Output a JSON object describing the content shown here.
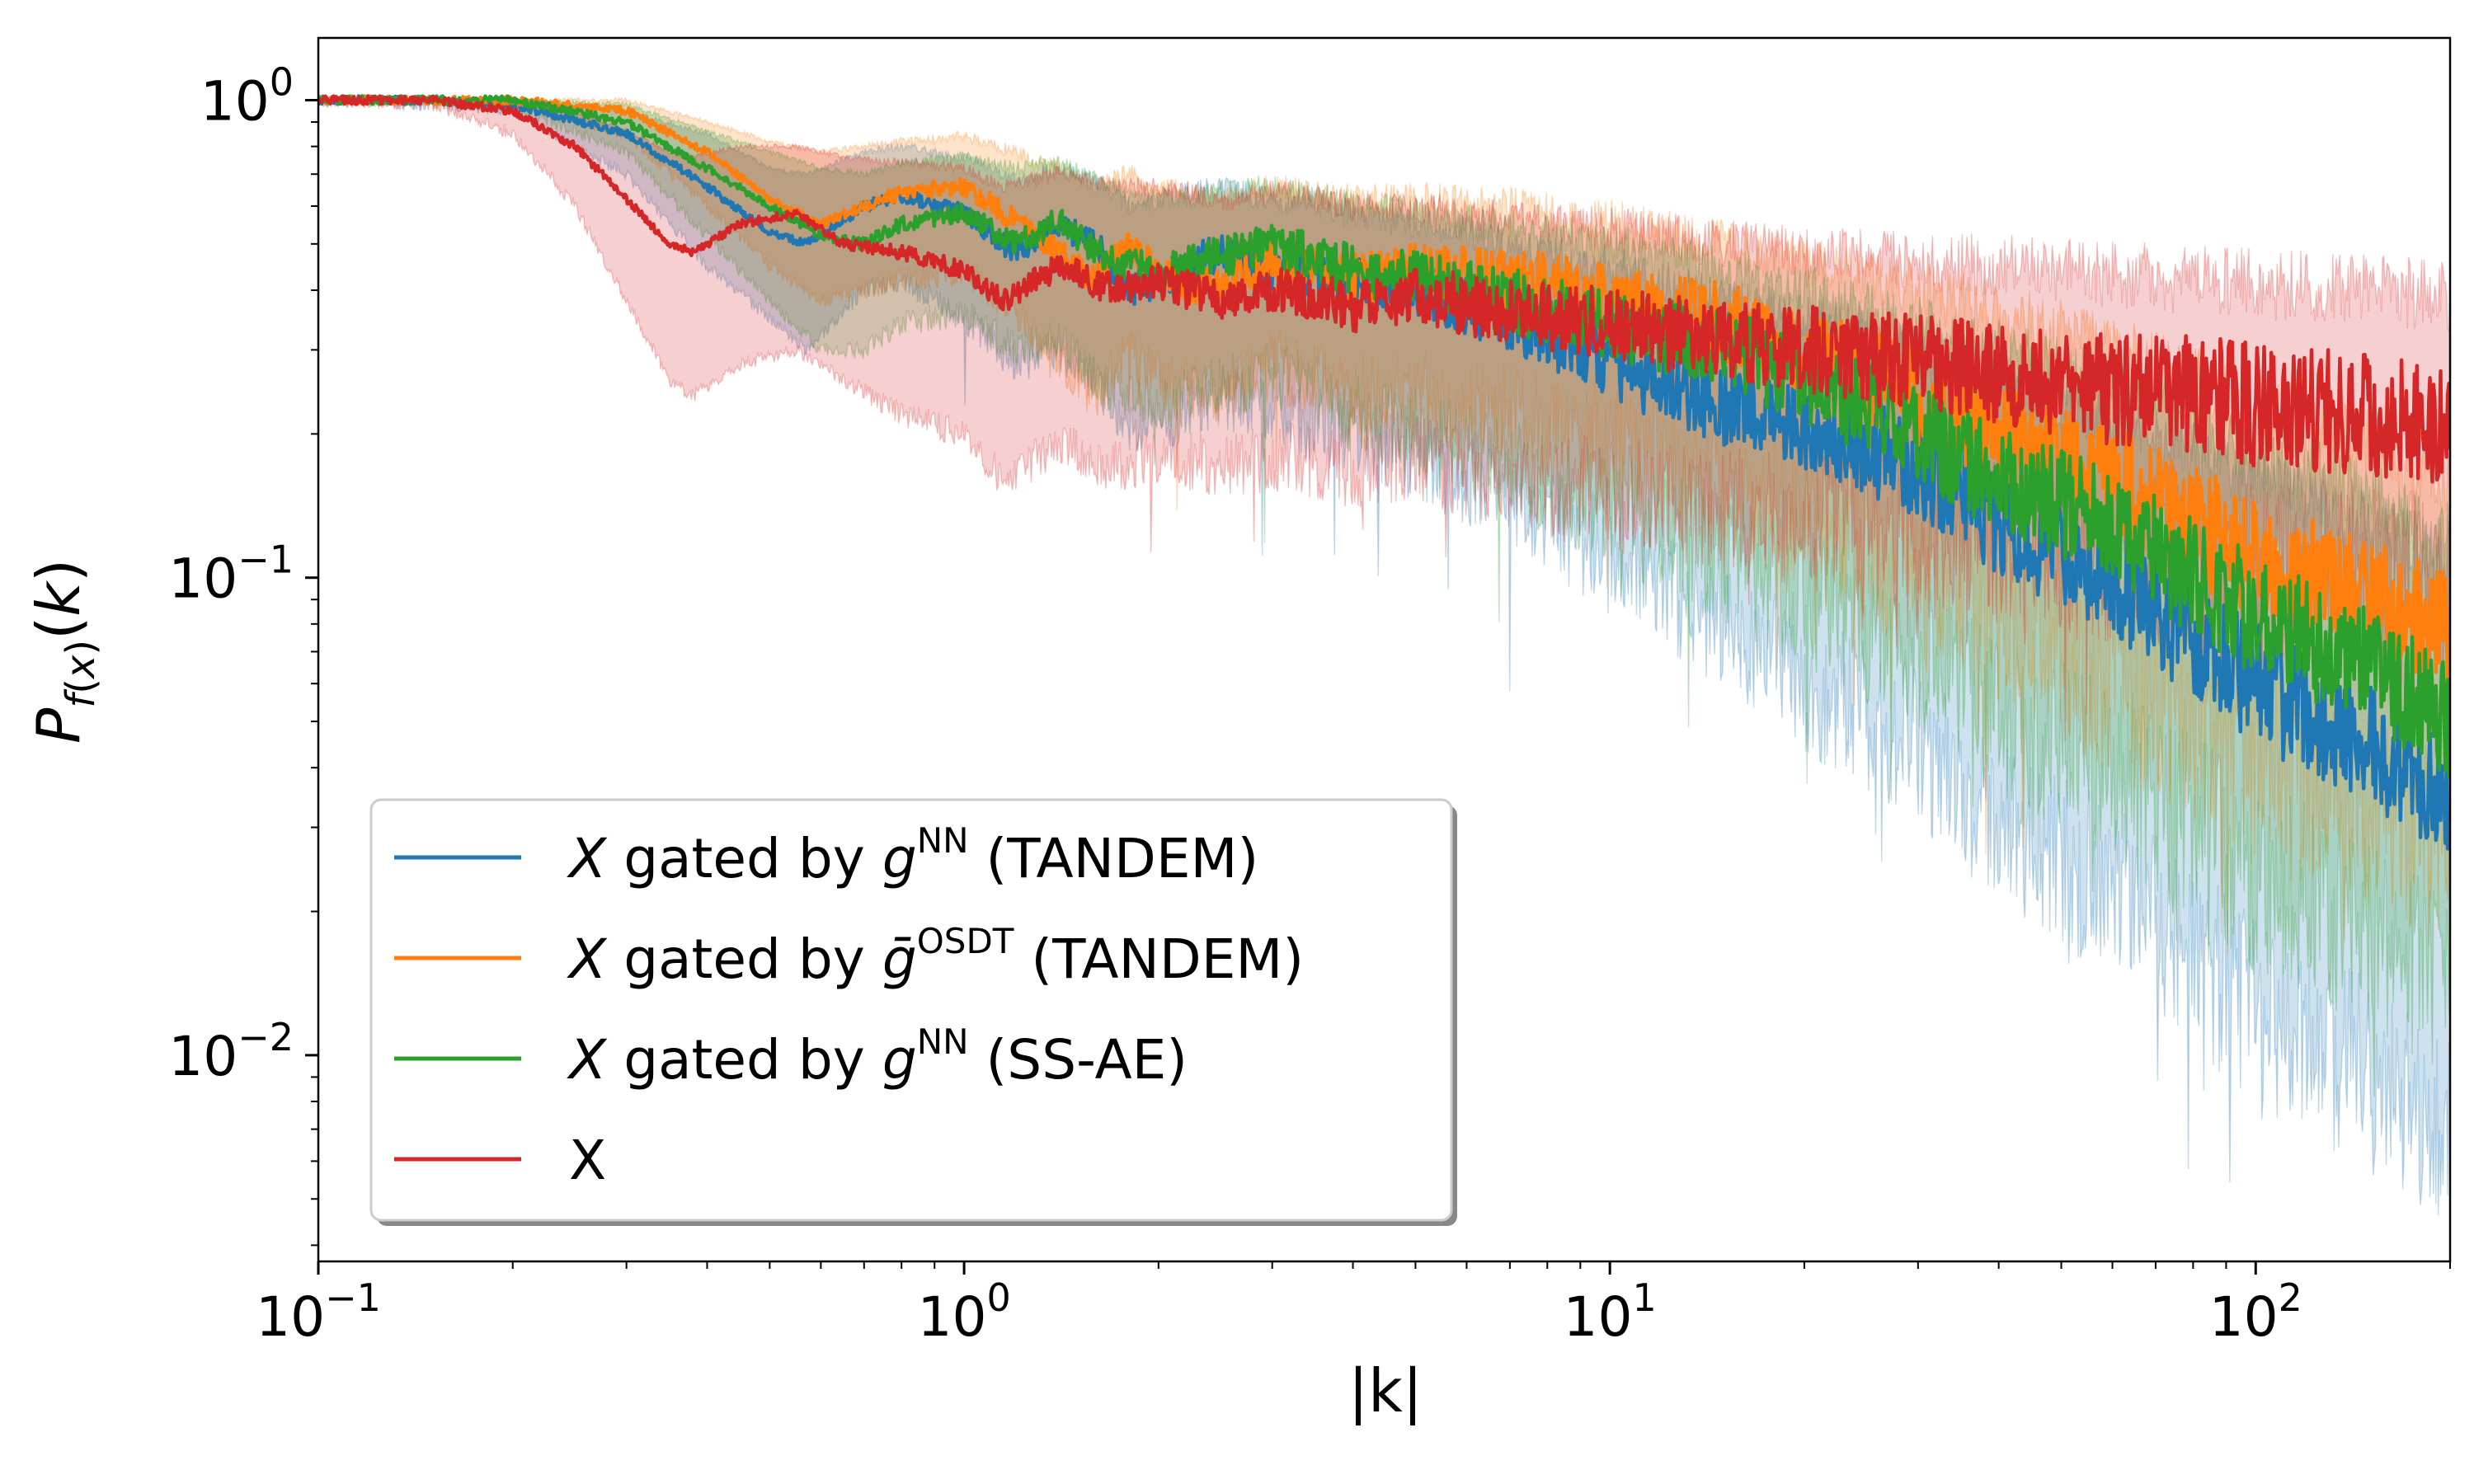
{
  "chart_data": {
    "type": "line",
    "title": "",
    "xlabel": "|k|",
    "ylabel": "P_f(x)(k)",
    "xscale": "log",
    "yscale": "log",
    "xlim": [
      0.1,
      200
    ],
    "ylim": [
      0.0037,
      1.35
    ],
    "x_ticks": [
      {
        "base": "10",
        "exp": "−1"
      },
      {
        "base": "10",
        "exp": "0"
      },
      {
        "base": "10",
        "exp": "1"
      },
      {
        "base": "10",
        "exp": "2"
      }
    ],
    "y_ticks": [
      {
        "base": "10",
        "exp": "0"
      },
      {
        "base": "10",
        "exp": "−1"
      },
      {
        "base": "10",
        "exp": "−2"
      }
    ],
    "legend_position": "lower-left",
    "series": [
      {
        "name": "X gated by g^NN (TANDEM)",
        "legend": {
          "var": "X",
          "mid": " gated by ",
          "g": "g",
          "sup": "NN",
          "tail": " (TANDEM)"
        },
        "color": "#1f77b4",
        "k": [
          0.1,
          0.15,
          0.2,
          0.3,
          0.4,
          0.5,
          0.57,
          0.7,
          0.8,
          1.0,
          1.2,
          1.4,
          1.6,
          1.8,
          2.0,
          2.5,
          3.0,
          4.0,
          5.0,
          7.0,
          10.0,
          15.0,
          20.0,
          30.0,
          40.0,
          60.0,
          80.0,
          100.0,
          150.0,
          200.0
        ],
        "values": [
          1.0,
          1.0,
          0.98,
          0.85,
          0.66,
          0.53,
          0.5,
          0.6,
          0.63,
          0.58,
          0.48,
          0.55,
          0.5,
          0.4,
          0.42,
          0.48,
          0.44,
          0.42,
          0.4,
          0.35,
          0.28,
          0.23,
          0.21,
          0.17,
          0.13,
          0.1,
          0.075,
          0.06,
          0.045,
          0.035
        ],
        "lower": [
          1.0,
          0.98,
          0.95,
          0.7,
          0.45,
          0.35,
          0.3,
          0.4,
          0.42,
          0.35,
          0.28,
          0.3,
          0.26,
          0.2,
          0.21,
          0.24,
          0.22,
          0.2,
          0.18,
          0.15,
          0.11,
          0.08,
          0.06,
          0.045,
          0.03,
          0.022,
          0.016,
          0.012,
          0.009,
          0.007
        ],
        "upper": [
          1.0,
          1.0,
          1.0,
          0.95,
          0.85,
          0.72,
          0.7,
          0.78,
          0.8,
          0.76,
          0.68,
          0.72,
          0.68,
          0.6,
          0.62,
          0.66,
          0.62,
          0.58,
          0.55,
          0.5,
          0.45,
          0.38,
          0.35,
          0.3,
          0.26,
          0.22,
          0.19,
          0.16,
          0.13,
          0.11
        ]
      },
      {
        "name": "X gated by ḡ^OSDT (TANDEM)",
        "legend": {
          "var": "X",
          "mid": " gated by ",
          "g": "ḡ",
          "sup": "OSDT",
          "tail": " (TANDEM)"
        },
        "color": "#ff7f0e",
        "k": [
          0.1,
          0.15,
          0.2,
          0.3,
          0.4,
          0.5,
          0.6,
          0.7,
          0.8,
          1.0,
          1.2,
          1.4,
          1.6,
          1.8,
          2.0,
          2.5,
          3.0,
          4.0,
          5.0,
          7.0,
          10.0,
          15.0,
          20.0,
          30.0,
          40.0,
          60.0,
          80.0,
          100.0,
          150.0,
          200.0
        ],
        "values": [
          1.0,
          1.0,
          1.0,
          0.95,
          0.78,
          0.62,
          0.55,
          0.6,
          0.64,
          0.66,
          0.56,
          0.48,
          0.42,
          0.5,
          0.43,
          0.4,
          0.47,
          0.42,
          0.44,
          0.42,
          0.38,
          0.34,
          0.3,
          0.24,
          0.2,
          0.16,
          0.13,
          0.11,
          0.09,
          0.075
        ],
        "lower": [
          1.0,
          1.0,
          0.98,
          0.85,
          0.6,
          0.45,
          0.38,
          0.4,
          0.42,
          0.44,
          0.36,
          0.28,
          0.24,
          0.3,
          0.26,
          0.24,
          0.28,
          0.24,
          0.24,
          0.22,
          0.19,
          0.16,
          0.13,
          0.1,
          0.08,
          0.06,
          0.048,
          0.04,
          0.032,
          0.026
        ],
        "upper": [
          1.0,
          1.0,
          1.0,
          1.0,
          0.9,
          0.82,
          0.78,
          0.8,
          0.82,
          0.84,
          0.78,
          0.72,
          0.66,
          0.7,
          0.66,
          0.62,
          0.66,
          0.62,
          0.62,
          0.6,
          0.56,
          0.5,
          0.46,
          0.4,
          0.36,
          0.3,
          0.26,
          0.22,
          0.19,
          0.16
        ]
      },
      {
        "name": "X gated by g^NN (SS-AE)",
        "legend": {
          "var": "X",
          "mid": " gated by ",
          "g": "g",
          "sup": "NN",
          "tail": " (SS-AE)"
        },
        "color": "#2ca02c",
        "k": [
          0.1,
          0.15,
          0.2,
          0.3,
          0.4,
          0.5,
          0.6,
          0.7,
          0.8,
          1.0,
          1.2,
          1.4,
          1.6,
          1.8,
          2.0,
          2.5,
          3.0,
          4.0,
          5.0,
          7.0,
          10.0,
          15.0,
          20.0,
          30.0,
          40.0,
          60.0,
          80.0,
          100.0,
          150.0,
          200.0
        ],
        "values": [
          1.0,
          1.0,
          1.0,
          0.9,
          0.72,
          0.6,
          0.52,
          0.5,
          0.55,
          0.58,
          0.5,
          0.56,
          0.48,
          0.45,
          0.44,
          0.47,
          0.5,
          0.44,
          0.42,
          0.38,
          0.34,
          0.3,
          0.26,
          0.2,
          0.16,
          0.13,
          0.1,
          0.085,
          0.065,
          0.05
        ],
        "lower": [
          1.0,
          1.0,
          0.97,
          0.78,
          0.52,
          0.38,
          0.3,
          0.3,
          0.34,
          0.36,
          0.3,
          0.32,
          0.26,
          0.24,
          0.23,
          0.25,
          0.27,
          0.22,
          0.2,
          0.17,
          0.14,
          0.11,
          0.09,
          0.07,
          0.05,
          0.04,
          0.03,
          0.024,
          0.018,
          0.014
        ],
        "upper": [
          1.0,
          1.0,
          1.0,
          0.98,
          0.86,
          0.78,
          0.72,
          0.7,
          0.74,
          0.76,
          0.72,
          0.74,
          0.68,
          0.64,
          0.62,
          0.64,
          0.66,
          0.6,
          0.58,
          0.54,
          0.5,
          0.44,
          0.4,
          0.34,
          0.3,
          0.25,
          0.21,
          0.18,
          0.15,
          0.12
        ]
      },
      {
        "name": "X",
        "legend": {
          "var": "",
          "mid": "",
          "g": "",
          "sup": "",
          "tail": "X"
        },
        "color": "#d62728",
        "k": [
          0.1,
          0.15,
          0.2,
          0.25,
          0.3,
          0.35,
          0.38,
          0.45,
          0.55,
          0.65,
          0.8,
          1.0,
          1.15,
          1.4,
          1.7,
          2.0,
          2.5,
          3.0,
          4.0,
          5.0,
          7.0,
          10.0,
          15.0,
          20.0,
          30.0,
          40.0,
          60.0,
          80.0,
          100.0,
          150.0,
          200.0
        ],
        "values": [
          1.0,
          1.0,
          0.95,
          0.8,
          0.62,
          0.5,
          0.48,
          0.55,
          0.58,
          0.5,
          0.48,
          0.44,
          0.38,
          0.45,
          0.4,
          0.42,
          0.38,
          0.4,
          0.37,
          0.39,
          0.36,
          0.34,
          0.31,
          0.3,
          0.28,
          0.27,
          0.25,
          0.24,
          0.23,
          0.22,
          0.2
        ],
        "lower": [
          1.0,
          0.98,
          0.85,
          0.6,
          0.38,
          0.26,
          0.24,
          0.28,
          0.3,
          0.26,
          0.22,
          0.2,
          0.16,
          0.19,
          0.17,
          0.18,
          0.17,
          0.18,
          0.17,
          0.18,
          0.16,
          0.15,
          0.14,
          0.13,
          0.12,
          0.12,
          0.11,
          0.11,
          0.1,
          0.1,
          0.09
        ],
        "upper": [
          1.0,
          1.0,
          1.0,
          0.95,
          0.86,
          0.78,
          0.76,
          0.8,
          0.8,
          0.76,
          0.74,
          0.72,
          0.66,
          0.7,
          0.66,
          0.66,
          0.62,
          0.64,
          0.6,
          0.6,
          0.56,
          0.54,
          0.5,
          0.48,
          0.46,
          0.45,
          0.43,
          0.42,
          0.41,
          0.4,
          0.39
        ]
      }
    ]
  }
}
